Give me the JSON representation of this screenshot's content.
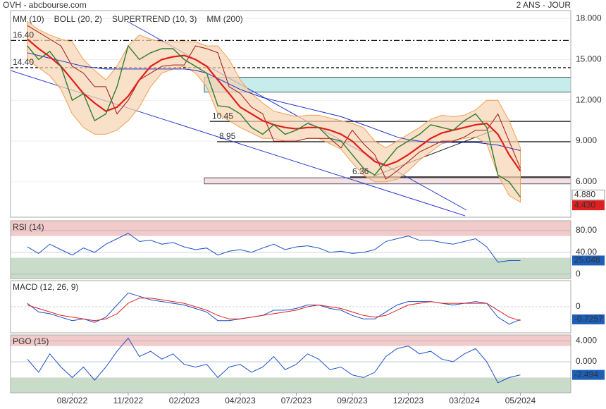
{
  "header": {
    "title": "OVH - abcbourse.com",
    "period": "2 ANS - JOUR"
  },
  "chart_data": [
    {
      "type": "line",
      "x": [
        3,
        5,
        7,
        9,
        11,
        13,
        15,
        17,
        19,
        21,
        23,
        25,
        27,
        29,
        31,
        33,
        35,
        37,
        39,
        41,
        43,
        45,
        47,
        49,
        51,
        53,
        55,
        57,
        59,
        61,
        63,
        65,
        67,
        69,
        71,
        73,
        75,
        77,
        79,
        81,
        83,
        85,
        87,
        89,
        91
      ],
      "xlim": [
        0,
        100
      ],
      "xticks": [
        {
          "value": 11,
          "label": "08/2022"
        },
        {
          "value": 21,
          "label": "11/2022"
        },
        {
          "value": 31,
          "label": "02/2023"
        },
        {
          "value": 41,
          "label": "04/2023"
        },
        {
          "value": 51,
          "label": "07/2023"
        },
        {
          "value": 61,
          "label": "09/2023"
        },
        {
          "value": 71,
          "label": "12/2023"
        },
        {
          "value": 81,
          "label": "03/2024"
        },
        {
          "value": 91,
          "label": "05/2024"
        }
      ],
      "ylim": [
        3.4,
        18.6
      ],
      "yticks": [
        {
          "value": 6,
          "label": "6.000"
        },
        {
          "value": 9,
          "label": "9.000"
        },
        {
          "value": 12,
          "label": "12.000"
        },
        {
          "value": 15,
          "label": "15.000"
        },
        {
          "value": 18,
          "label": "18.000"
        }
      ],
      "close": {
        "color": "#2e7d32",
        "values": [
          16.0,
          15.0,
          15.6,
          14.5,
          12.0,
          12.5,
          10.5,
          11.0,
          13.0,
          16.0,
          15.0,
          15.5,
          15.8,
          15.8,
          15.0,
          14.5,
          14.0,
          11.6,
          11.5,
          11.0,
          10.0,
          9.5,
          10.2,
          9.5,
          9.8,
          10.3,
          10.0,
          9.2,
          9.0,
          8.0,
          7.0,
          6.5,
          7.5,
          8.5,
          9.0,
          9.5,
          10.2,
          10.0,
          9.8,
          10.5,
          11.0,
          10.0,
          6.5,
          6.0,
          4.88
        ]
      },
      "series": [
        {
          "name": "MM (10)",
          "color": "#e0201a",
          "values": [
            16.5,
            15.8,
            15.2,
            14.5,
            13.5,
            12.5,
            11.8,
            11.2,
            11.5,
            12.3,
            13.5,
            14.5,
            15.0,
            15.2,
            15.3,
            15.0,
            14.5,
            13.5,
            12.5,
            11.5,
            11.0,
            10.5,
            10.2,
            10.0,
            9.9,
            10.0,
            10.0,
            9.8,
            9.5,
            9.0,
            8.2,
            7.5,
            7.2,
            7.5,
            8.0,
            8.6,
            9.2,
            9.6,
            9.8,
            10.0,
            10.2,
            10.3,
            9.5,
            8.0,
            6.8
          ]
        },
        {
          "name": "BOLL (20, 2)",
          "color": "#f0a050",
          "values": [
            17.8,
            17.2,
            16.8,
            16.5,
            16.3,
            15.0,
            14.2,
            13.5,
            14.5,
            16.0,
            16.8,
            16.5,
            16.3,
            16.3,
            16.3,
            16.3,
            16.0,
            16.0,
            15.0,
            13.5,
            12.5,
            11.8,
            11.2,
            11.0,
            10.8,
            10.9,
            10.9,
            10.7,
            10.5,
            10.3,
            10.0,
            9.0,
            8.5,
            9.0,
            9.5,
            10.0,
            10.6,
            10.9,
            10.8,
            10.9,
            11.3,
            12.0,
            12.0,
            10.5,
            8.5
          ],
          "lower": [
            15.0,
            14.4,
            13.8,
            12.8,
            11.0,
            10.0,
            9.5,
            9.5,
            9.8,
            10.5,
            11.5,
            13.0,
            14.0,
            14.3,
            14.5,
            14.0,
            13.0,
            11.0,
            10.5,
            10.0,
            9.6,
            9.2,
            9.2,
            9.0,
            9.0,
            9.2,
            9.2,
            8.8,
            8.4,
            7.4,
            6.5,
            6.0,
            6.0,
            6.2,
            6.8,
            7.6,
            8.2,
            8.8,
            9.0,
            9.2,
            9.3,
            8.8,
            6.5,
            5.0,
            4.5
          ]
        },
        {
          "name": "SUPERTREND (10, 3)",
          "color": "#a01818",
          "values": [
            17.5,
            17.0,
            16.5,
            16.0,
            14.5,
            14.0,
            13.0,
            13.0,
            11.0,
            12.0,
            13.5,
            14.0,
            14.5,
            14.6,
            14.6,
            16.0,
            15.8,
            15.5,
            13.0,
            12.5,
            11.5,
            11.0,
            9.0,
            9.0,
            9.0,
            9.2,
            9.2,
            9.2,
            8.5,
            9.8,
            8.8,
            8.0,
            6.2,
            6.8,
            7.5,
            8.2,
            8.6,
            9.0,
            9.0,
            9.3,
            9.8,
            9.8,
            11.0,
            9.0,
            7.0
          ]
        },
        {
          "name": "MM (200)",
          "color": "#1c2fc8",
          "values": [
            15.5,
            15.3,
            15.1,
            14.9,
            14.7,
            14.5,
            14.4,
            14.3,
            14.3,
            14.3,
            14.3,
            14.3,
            14.3,
            14.3,
            14.3,
            14.2,
            14.0,
            13.6,
            13.2,
            12.8,
            12.5,
            12.2,
            12.0,
            11.8,
            11.6,
            11.4,
            11.2,
            11.0,
            10.8,
            10.5,
            10.2,
            9.9,
            9.6,
            9.3,
            9.1,
            9.0,
            8.9,
            8.9,
            8.9,
            8.9,
            8.9,
            8.8,
            8.7,
            8.5,
            8.3
          ]
        }
      ],
      "levels": [
        {
          "value": 16.4,
          "label": "16.40"
        },
        {
          "value": 14.4,
          "label": "14.40"
        },
        {
          "value": 10.45,
          "label": "10.45"
        },
        {
          "value": 8.95,
          "label": "8.95"
        },
        {
          "value": 6.36,
          "label": "6.36"
        }
      ],
      "zones": [
        {
          "from": 12.6,
          "to": 13.7,
          "color": "#c6ecec"
        },
        {
          "from": 5.85,
          "to": 6.3,
          "color": "#f4e0e4"
        }
      ],
      "last_labels": [
        {
          "value": 4.88,
          "label": "4.880",
          "color": "#ffffff"
        },
        {
          "value": 4.43,
          "label": "4.430",
          "color": "#e02020"
        }
      ]
    },
    {
      "type": "line",
      "title": "RSI (14)",
      "ylim": [
        -8,
        98
      ],
      "yticks": [
        0,
        {
          "value": 40,
          "label": "40.00"
        },
        {
          "value": 80,
          "label": "80.00"
        }
      ],
      "zones": [
        {
          "from": 70,
          "to": 98,
          "color": "#f3caca"
        },
        {
          "from": -8,
          "to": 30,
          "color": "#c9dcc9"
        }
      ],
      "series": [
        {
          "color": "#1c4fc8",
          "values": [
            50,
            38,
            55,
            45,
            35,
            48,
            40,
            55,
            65,
            75,
            60,
            62,
            55,
            58,
            50,
            45,
            48,
            35,
            42,
            45,
            40,
            48,
            55,
            45,
            50,
            52,
            48,
            40,
            42,
            38,
            40,
            45,
            60,
            65,
            70,
            62,
            62,
            58,
            55,
            60,
            65,
            50,
            22,
            25,
            25.048
          ]
        }
      ],
      "last_labels": [
        {
          "value": 25.048,
          "color": "#1c5fb8"
        }
      ]
    },
    {
      "type": "line",
      "title": "MACD (12, 26, 9)",
      "ylim": [
        -1.5,
        1.5
      ],
      "yticks": [
        0
      ],
      "series": [
        {
          "color": "#1c4fc8",
          "values": [
            0.2,
            -0.3,
            -0.4,
            -0.6,
            -0.8,
            -0.7,
            -0.9,
            -0.6,
            0.1,
            0.8,
            0.6,
            0.4,
            0.3,
            0.2,
            0.1,
            -0.1,
            -0.3,
            -0.8,
            -0.8,
            -0.7,
            -0.6,
            -0.5,
            -0.2,
            -0.2,
            -0.1,
            0.1,
            0.1,
            -0.1,
            -0.2,
            -0.5,
            -0.7,
            -0.7,
            -0.3,
            0.1,
            0.3,
            0.3,
            0.3,
            0.2,
            0.1,
            0.2,
            0.3,
            0.2,
            -0.6,
            -1.0,
            -0.7257
          ]
        },
        {
          "color": "#e02020",
          "values": [
            0.1,
            -0.1,
            -0.3,
            -0.5,
            -0.6,
            -0.7,
            -0.8,
            -0.7,
            -0.4,
            0.2,
            0.5,
            0.5,
            0.4,
            0.3,
            0.2,
            0.0,
            -0.2,
            -0.5,
            -0.7,
            -0.7,
            -0.6,
            -0.5,
            -0.4,
            -0.3,
            -0.2,
            0.0,
            0.1,
            0.0,
            -0.1,
            -0.3,
            -0.5,
            -0.6,
            -0.5,
            -0.2,
            0.1,
            0.2,
            0.3,
            0.2,
            0.2,
            0.2,
            0.2,
            0.2,
            -0.2,
            -0.6,
            -0.8
          ]
        }
      ],
      "last_labels": [
        {
          "value": -0.7257,
          "color": "#1c5fb8"
        }
      ]
    },
    {
      "type": "line",
      "title": "PGO (15)",
      "ylim": [
        -5.9,
        5.1
      ],
      "yticks": [
        {
          "value": 4,
          "label": "4.000"
        },
        {
          "value": 0,
          "label": "0.000"
        }
      ],
      "zones": [
        {
          "from": 3,
          "to": 5.1,
          "color": "#f3caca"
        },
        {
          "from": -5.9,
          "to": -3,
          "color": "#c9dcc9"
        }
      ],
      "series": [
        {
          "color": "#1c4fc8",
          "values": [
            0.5,
            -2,
            1.5,
            -1,
            -3,
            -1,
            -3.5,
            -1,
            2,
            4.5,
            1,
            2,
            0.5,
            1.5,
            -0.5,
            -1,
            -0.5,
            -3,
            -1,
            -0.5,
            -2,
            -1,
            1,
            -1.5,
            -0.5,
            1.5,
            0.5,
            -1.5,
            -1,
            -2.5,
            -3,
            -2,
            1,
            2.5,
            3,
            1.5,
            2,
            0.5,
            0,
            1.5,
            2.5,
            0,
            -4,
            -3,
            -2.494
          ]
        }
      ],
      "last_labels": [
        {
          "value": -2.494,
          "color": "#1c5fb8"
        }
      ]
    }
  ]
}
